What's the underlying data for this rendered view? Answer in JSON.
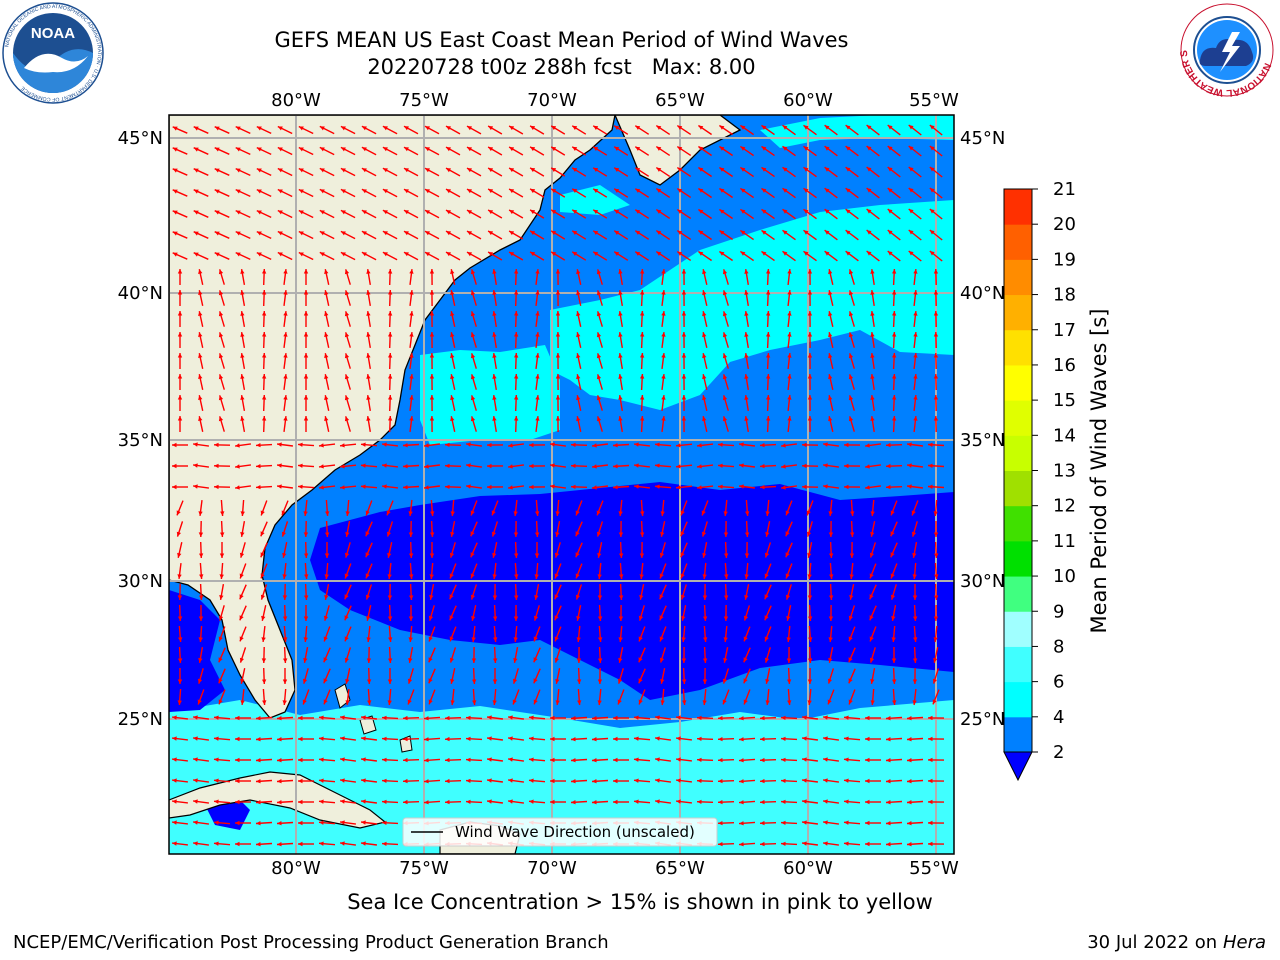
{
  "header": {
    "title_line1": "GEFS MEAN US East Coast Mean Period of Wind Waves",
    "title_line2": "20220728 t00z 288h fcst   Max: 8.00"
  },
  "logos": {
    "left": {
      "text": "NOAA",
      "icon": "noaa-logo",
      "ring_text": "NATIONAL OCEANIC AND ATMOSPHERIC ADMINISTRATION · U.S. DEPARTMENT OF COMMERCE"
    },
    "right": {
      "icon": "nws-logo",
      "ring_text": "NATIONAL WEATHER SERVICE"
    }
  },
  "map": {
    "lon_labels": [
      "80°W",
      "75°W",
      "70°W",
      "65°W",
      "60°W",
      "55°W"
    ],
    "lat_labels": [
      "45°N",
      "40°N",
      "35°N",
      "30°N",
      "25°N"
    ],
    "legend_label": "Wind Wave Direction (unscaled)",
    "land_color": "#efefdc",
    "arrow_color": "#ff0000"
  },
  "colorbar": {
    "label": "Mean Period of Wind Waves [s]",
    "ticks": [
      "2",
      "4",
      "6",
      "8",
      "9",
      "10",
      "11",
      "12",
      "13",
      "14",
      "15",
      "16",
      "17",
      "18",
      "19",
      "20",
      "21"
    ],
    "colors": [
      "#0080ff",
      "#00ffff",
      "#40ffff",
      "#a0ffff",
      "#40ff80",
      "#00e000",
      "#40e000",
      "#a0e000",
      "#c8ff00",
      "#e0ff00",
      "#ffff00",
      "#ffe000",
      "#ffb000",
      "#ff8c00",
      "#ff6000",
      "#ff3000",
      "#ff0000"
    ],
    "underflow_color": "#0000ff"
  },
  "footer": {
    "sea_ice_note": "Sea Ice Concentration > 15% is shown in pink to yellow",
    "left": "NCEP/EMC/Verification Post Processing Product Generation Branch",
    "right_date": "30 Jul 2022 on ",
    "right_host": "Hera"
  }
}
